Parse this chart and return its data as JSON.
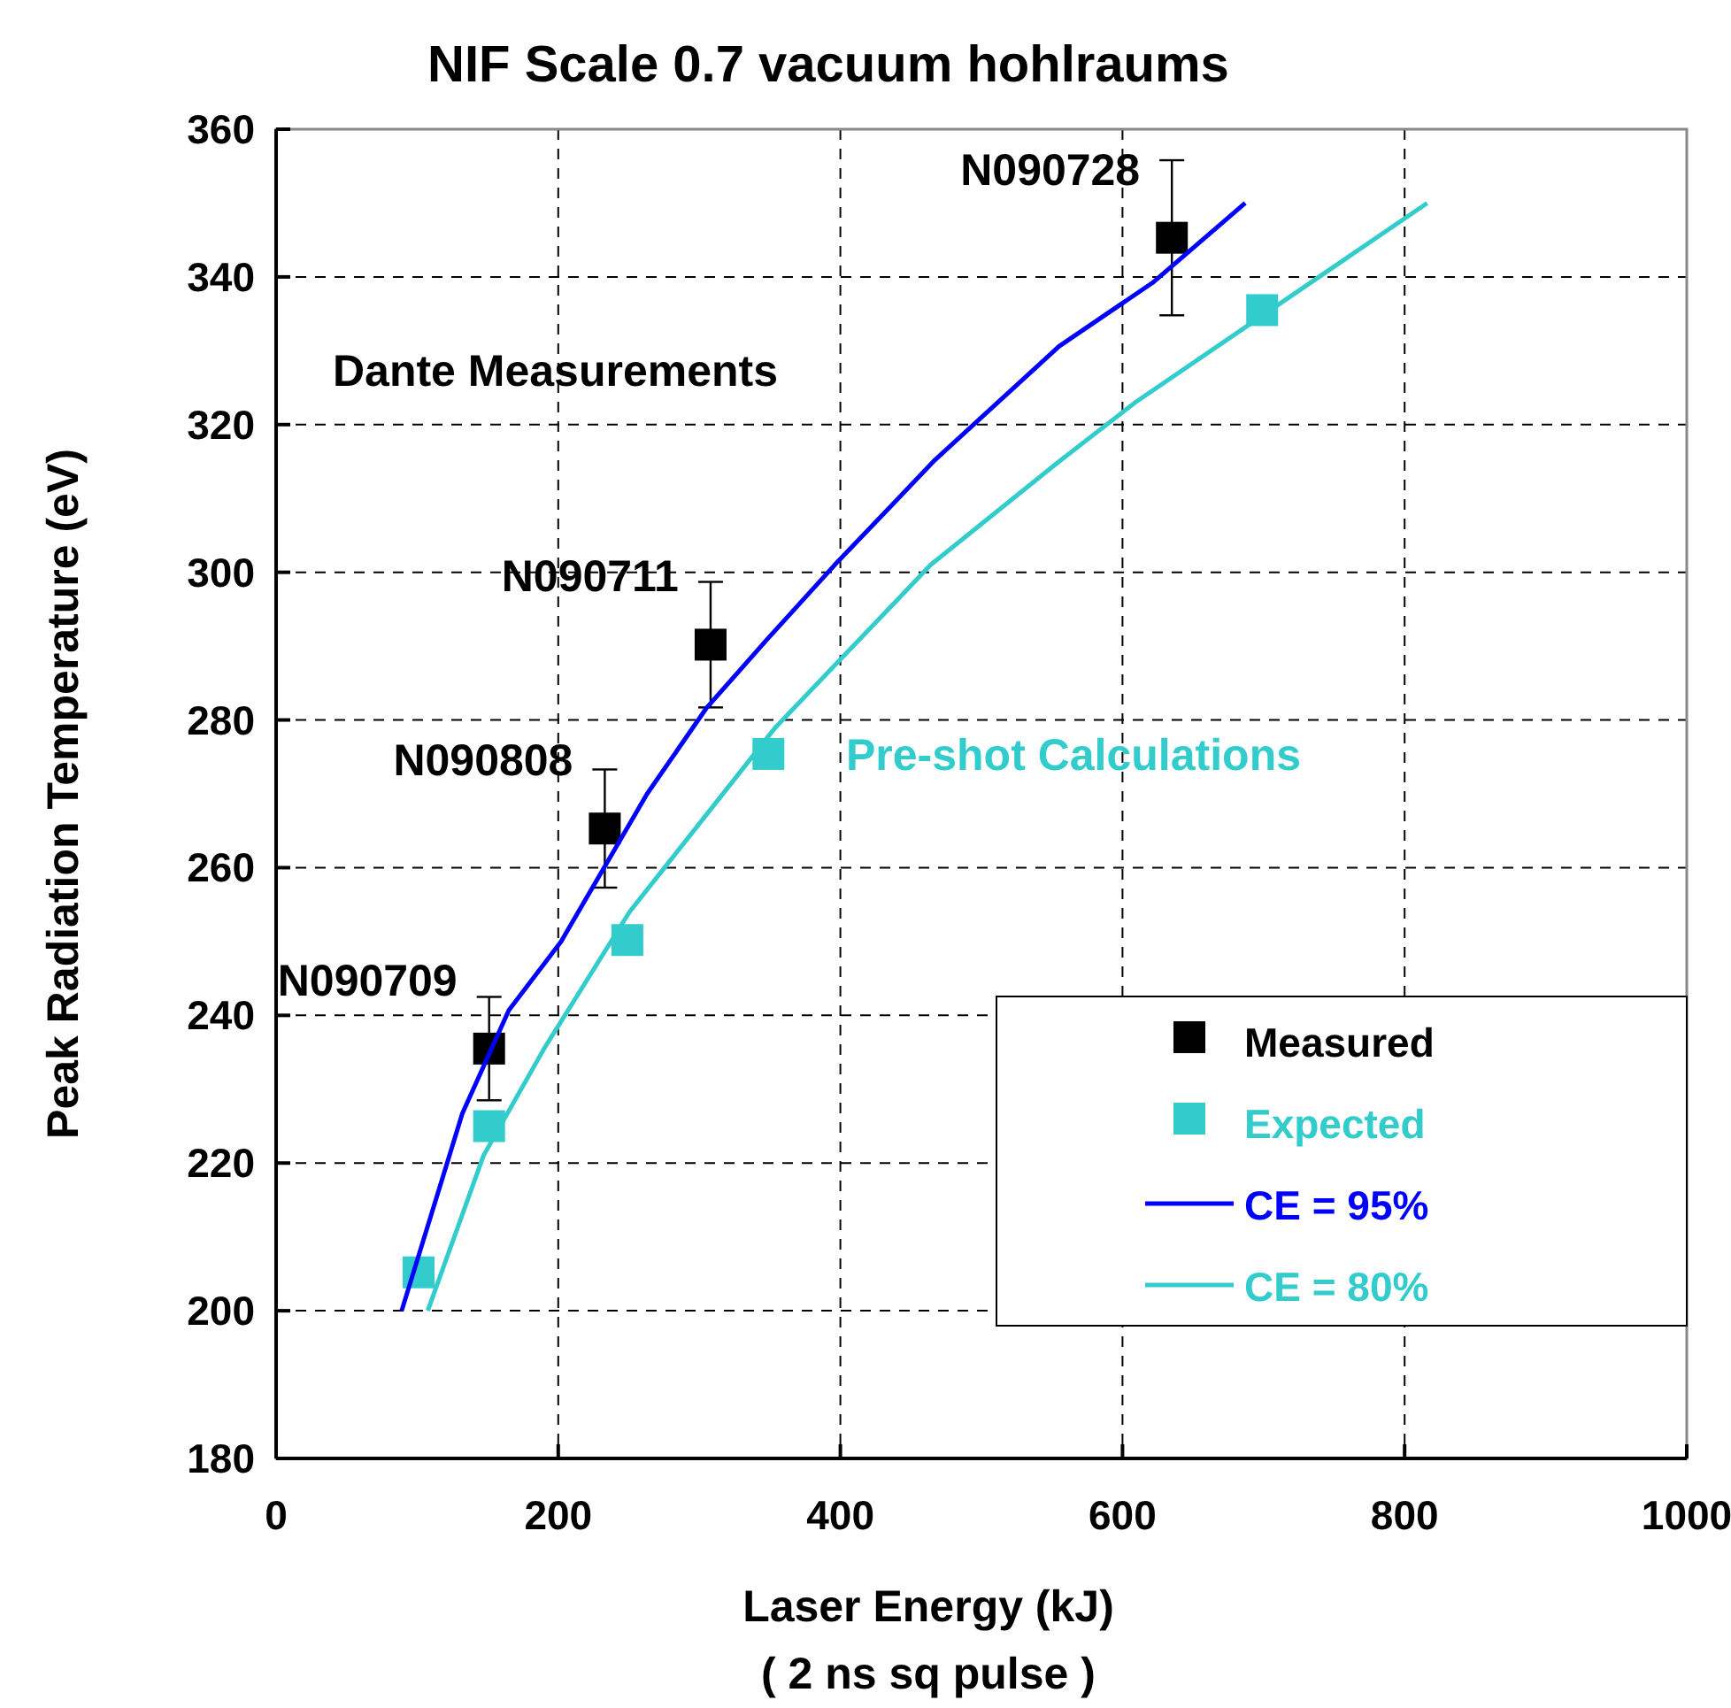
{
  "chart_data": {
    "type": "scatter",
    "title": "NIF Scale 0.7 vacuum hohlraums",
    "xlabel": "Laser Energy (kJ)\n( 2 ns sq pulse )",
    "ylabel": "Peak Radiation Temperature (eV)",
    "xlim": [
      0,
      1000
    ],
    "xticks": [
      0,
      200,
      400,
      600,
      800,
      1000
    ],
    "ylim": [
      180,
      360
    ],
    "yticks": [
      180,
      200,
      220,
      240,
      260,
      280,
      300,
      320,
      340,
      360
    ],
    "grid": true,
    "legend": "bottom right",
    "marker": "square",
    "series": [
      {
        "name": "Measured",
        "color": "#000000",
        "x": [
          151,
          233,
          308,
          635
        ],
        "values": [
          235.5,
          265.3,
          290.2,
          345.3
        ],
        "errors": [
          7,
          8,
          8.5,
          10.5
        ]
      },
      {
        "name": "Expected",
        "color": "#33cccc",
        "x": [
          101,
          151,
          249,
          349,
          699
        ],
        "values": [
          205.2,
          225,
          250.2,
          275.4,
          335.5
        ]
      },
      {
        "name": "CE = 95%",
        "type": "line",
        "color": "#0000ff",
        "marker": "none",
        "x": [
          89,
          132,
          165,
          202,
          263,
          305,
          348,
          396,
          467,
          555,
          622,
          687
        ],
        "values": [
          200,
          226.7,
          240.7,
          250,
          270,
          281.6,
          290.9,
          301,
          315.2,
          330.6,
          339.3,
          350
        ]
      },
      {
        "name": "CE = 80%",
        "type": "line",
        "color": "#33cccc",
        "marker": "none",
        "x": [
          107.5,
          147,
          190,
          250.5,
          354,
          464,
          555,
          609,
          701,
          816
        ],
        "values": [
          200,
          221,
          235.5,
          254,
          279,
          301,
          315,
          323,
          335,
          350
        ]
      }
    ],
    "annotations": [
      {
        "text": "N090709",
        "x": 151,
        "y": 235.5
      },
      {
        "text": "N090808",
        "x": 233,
        "y": 265.3
      },
      {
        "text": "N090711",
        "x": 308,
        "y": 290.2
      },
      {
        "text": "N090728",
        "x": 635,
        "y": 345.3
      },
      "Dante Measurements",
      "Pre-shot Calculations"
    ]
  }
}
